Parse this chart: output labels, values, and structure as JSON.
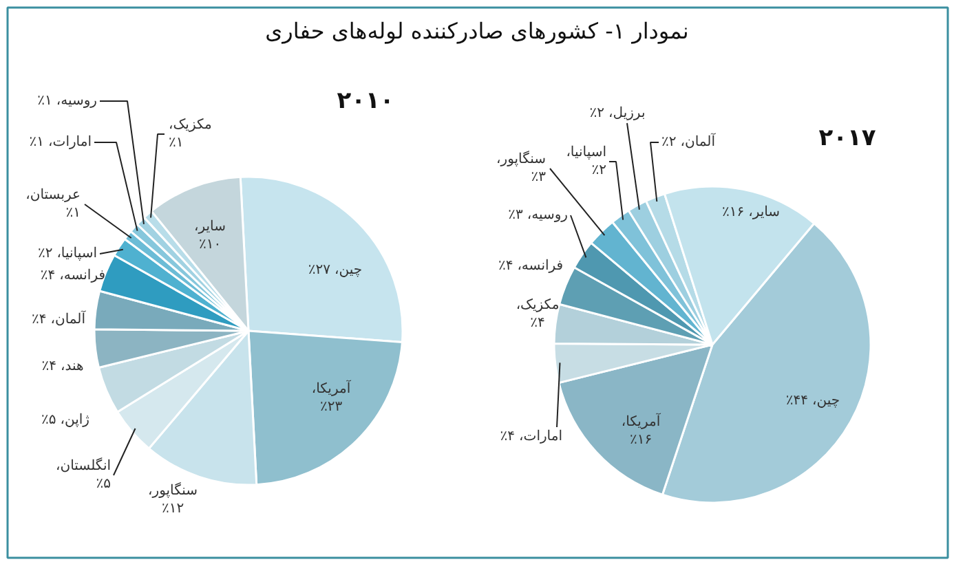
{
  "chart_data": [
    {
      "type": "pie",
      "title": "نمودار ۱- کشورهای صادرکننده لوله‌های حفاری",
      "subtitle": "۲۰۱۰",
      "categories": [
        "چین،",
        "آمریکا،",
        "سنگاپور،",
        "انگلستان،",
        "ژاپن،",
        "هند،",
        "آلمان،",
        "فرانسه،",
        "اسپانیا،",
        "عربستان،",
        "امارات،",
        "روسیه،",
        "مکزیک،",
        "سایر،"
      ],
      "values": [
        27,
        23,
        12,
        5,
        5,
        4,
        4,
        4,
        2,
        1,
        1,
        1,
        1,
        10
      ],
      "value_labels": [
        "۲۷٪",
        "۲۳٪",
        "۱۲٪",
        "۵٪",
        "۵٪",
        "۴٪",
        "۴٪",
        "۴٪",
        "۲٪",
        "۱٪",
        "۱٪",
        "۱٪",
        "۱٪",
        "۱۰٪"
      ],
      "colors": [
        "#c6e4ee",
        "#8fbfce",
        "#c8e3ec",
        "#d5e8ee",
        "#c2dbe3",
        "#8cb4c2",
        "#79aabb",
        "#2f9cc0",
        "#4fb1d0",
        "#6cbcd6",
        "#86c7dc",
        "#a1d2e2",
        "#b8dde9",
        "#c4d6dc"
      ]
    },
    {
      "type": "pie",
      "subtitle": "۲۰۱۷",
      "categories": [
        "چین،",
        "آمریکا،",
        "امارات،",
        "مکزیک،",
        "فرانسه،",
        "روسیه،",
        "سنگاپور،",
        "اسپانیا،",
        "برزیل،",
        "آلمان،",
        "سایر،"
      ],
      "values": [
        44,
        16,
        4,
        4,
        4,
        3,
        3,
        2,
        2,
        2,
        16
      ],
      "value_labels": [
        "۴۴٪",
        "۱۶٪",
        "۴٪",
        "۴٪",
        "۴٪",
        "۳٪",
        "۳٪",
        "۲٪",
        "۲٪",
        "۲٪",
        "۱۶٪"
      ],
      "colors": [
        "#a3cbd9",
        "#8ab6c6",
        "#c7dde4",
        "#b3d0da",
        "#5e9fb3",
        "#4f98b0",
        "#62b4d0",
        "#7fc2d9",
        "#9dcfe0",
        "#b5dbe7",
        "#c3e3ed"
      ]
    }
  ]
}
